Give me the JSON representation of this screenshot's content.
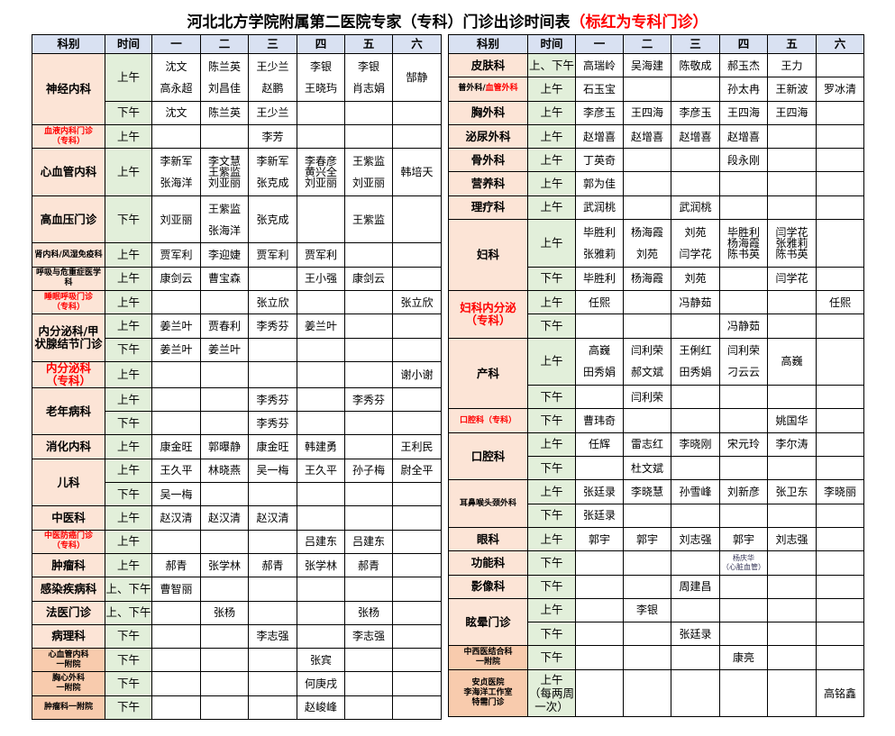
{
  "title": {
    "main": "河北北方学院附属第二医院专家（专科）门诊出诊时间表",
    "note": "（标红为专科门诊）"
  },
  "colors": {
    "header_bg": "#d9e1f2",
    "dept_bg": "#fce4d6",
    "annex_bg": "#f8cbad",
    "time_bg": "#e2efda",
    "specialty_text": "#ff0000"
  },
  "headers": [
    "科别",
    "时间",
    "一",
    "二",
    "三",
    "四",
    "五",
    "六"
  ],
  "left": {
    "rows": [
      {
        "dept": "神经内科",
        "span": 2,
        "time": "上午",
        "cells": [
          "沈文\n高永超",
          "陈兰英\n刘昌佳",
          "王少兰\n赵鹏",
          "李银\n王晓玙",
          "李银\n肖志娟",
          "郜静"
        ]
      },
      {
        "time": "下午",
        "cells": [
          "沈文",
          "陈兰英",
          "王少兰",
          "",
          "",
          ""
        ]
      },
      {
        "dept": "血液内科门诊\n（专科）",
        "red": true,
        "time": "上午",
        "cells": [
          "",
          "",
          "李芳",
          "",
          "",
          ""
        ]
      },
      {
        "dept": "心血管内科",
        "time": "上午",
        "cells": [
          "李新军\n张海洋",
          "李文慧\n王紫监\n刘亚丽",
          "李新军\n张克成",
          "李春彦\n黄兴全\n刘亚丽",
          "王紫监\n刘亚丽",
          "韩培天"
        ]
      },
      {
        "dept": "高血压门诊",
        "time": "下午",
        "cells": [
          "刘亚丽",
          "王紫监\n张海洋",
          "张克成",
          "",
          "王紫监",
          ""
        ]
      },
      {
        "dept": "肾内科/风湿免疫科",
        "time": "上午",
        "cells": [
          "贾军利",
          "李迎婕",
          "贾军利",
          "贾军利",
          "",
          ""
        ]
      },
      {
        "dept": "呼吸与危重症医学科",
        "time": "上午",
        "cells": [
          "康剑云",
          "曹宝森",
          "",
          "王小强",
          "康剑云",
          ""
        ]
      },
      {
        "dept": "睡眠呼吸门诊\n（专科）",
        "red": true,
        "time": "上午",
        "cells": [
          "",
          "",
          "张立欣",
          "",
          "",
          "张立欣"
        ]
      },
      {
        "dept": "内分泌科/甲\n状腺结节门诊",
        "span": 2,
        "time": "上午",
        "cells": [
          "姜兰叶",
          "贾春利",
          "李秀芬",
          "姜兰叶",
          "",
          ""
        ]
      },
      {
        "time": "下午",
        "cells": [
          "姜兰叶",
          "姜兰叶",
          "",
          "",
          "",
          ""
        ]
      },
      {
        "dept": "内分泌科\n（专科）",
        "red": true,
        "time": "上午",
        "cells": [
          "",
          "",
          "",
          "",
          "",
          "谢小谢"
        ]
      },
      {
        "dept": "老年病科",
        "span": 2,
        "time": "上午",
        "cells": [
          "",
          "",
          "李秀芬",
          "",
          "李秀芬",
          ""
        ]
      },
      {
        "time": "下午",
        "cells": [
          "",
          "",
          "李秀芬",
          "",
          "",
          ""
        ]
      },
      {
        "dept": "消化内科",
        "time": "上午",
        "cells": [
          "康金旺",
          "郭曝静",
          "康金旺",
          "韩建勇",
          "",
          "王利民"
        ]
      },
      {
        "dept": "儿科",
        "span": 2,
        "time": "上午",
        "cells": [
          "王久平",
          "林晓燕",
          "吴一梅",
          "王久平",
          "孙子梅",
          "尉全平"
        ]
      },
      {
        "time": "下午",
        "cells": [
          "吴一梅",
          "",
          "",
          "",
          "",
          ""
        ]
      },
      {
        "dept": "中医科",
        "time": "上午",
        "cells": [
          "赵汉清",
          "赵汉清",
          "赵汉清",
          "",
          "",
          ""
        ]
      },
      {
        "dept": "中医防癌门诊\n（专科）",
        "red": true,
        "time": "上午",
        "cells": [
          "",
          "",
          "",
          "吕建东",
          "吕建东",
          ""
        ]
      },
      {
        "dept": "肿瘤科",
        "time": "上午",
        "cells": [
          "郝青",
          "张学林",
          "郝青",
          "张学林",
          "郝青",
          ""
        ]
      },
      {
        "dept": "感染疾病科",
        "time": "上、下午",
        "cells": [
          "曹智丽",
          "",
          "",
          "",
          "",
          ""
        ]
      },
      {
        "dept": "法医门诊",
        "time": "上、下午",
        "cells": [
          "",
          "张杨",
          "",
          "",
          "张杨",
          ""
        ]
      },
      {
        "dept": "病理科",
        "time": "下午",
        "cells": [
          "",
          "",
          "李志强",
          "",
          "李志强",
          ""
        ]
      },
      {
        "dept": "心血管内科\n一附院",
        "annex": true,
        "time": "下午",
        "cells": [
          "",
          "",
          "",
          "张宾",
          "",
          ""
        ]
      },
      {
        "dept": "胸心外科\n一附院",
        "annex": true,
        "time": "下午",
        "cells": [
          "",
          "",
          "",
          "何庚戌",
          "",
          ""
        ]
      },
      {
        "dept": "肿瘤科一附院",
        "annex": true,
        "time": "下午",
        "cells": [
          "",
          "",
          "",
          "赵峻峰",
          "",
          ""
        ]
      }
    ]
  },
  "right": {
    "rows": [
      {
        "dept": "皮肤科",
        "time": "上、下午",
        "cells": [
          "高瑞岭",
          "吴海建",
          "陈敬成",
          "郝玉杰",
          "王力",
          ""
        ]
      },
      {
        "dept": "普外科/",
        "dept_red": "血管外科",
        "time": "上午",
        "cells": [
          "石玉宝",
          "",
          "",
          "孙太冉",
          "王新波",
          "罗冰清"
        ]
      },
      {
        "dept": "胸外科",
        "time": "上午",
        "cells": [
          "李彦玉",
          "王四海",
          "李彦玉",
          "王四海",
          "王四海",
          ""
        ]
      },
      {
        "dept": "泌尿外科",
        "time": "上午",
        "cells": [
          "赵增喜",
          "赵增喜",
          "赵增喜",
          "赵增喜",
          "",
          ""
        ]
      },
      {
        "dept": "骨外科",
        "time": "上午",
        "cells": [
          "丁英奇",
          "",
          "",
          "段永刚",
          "",
          ""
        ]
      },
      {
        "dept": "营养科",
        "time": "上午",
        "cells": [
          "郭为佳",
          "",
          "",
          "",
          "",
          ""
        ]
      },
      {
        "dept": "理疗科",
        "time": "上午",
        "cells": [
          "武润桃",
          "",
          "武润桃",
          "",
          "",
          ""
        ]
      },
      {
        "dept": "妇科",
        "span": 2,
        "time": "上午",
        "cells": [
          "毕胜利\n张雅莉",
          "杨海霞\n刘苑",
          "刘苑\n闫学花",
          "毕胜利\n杨海霞\n陈书英",
          "闫学花\n张雅莉\n陈书英",
          ""
        ]
      },
      {
        "time": "下午",
        "cells": [
          "毕胜利",
          "杨海霞",
          "刘苑",
          "",
          "闫学花",
          ""
        ]
      },
      {
        "dept": "妇科内分泌\n（专科）",
        "red": true,
        "span": 2,
        "time": "上午",
        "cells": [
          "任熙",
          "",
          "冯静茹",
          "",
          "",
          "任熙"
        ]
      },
      {
        "time": "下午",
        "cells": [
          "",
          "",
          "",
          "冯静茹",
          "",
          ""
        ]
      },
      {
        "dept": "产科",
        "span": 2,
        "time": "上午",
        "cells": [
          "高巍\n田秀娟",
          "闫利荣\n郝文斌",
          "王俐红\n田秀娟",
          "闫利荣\n刁云云",
          "高巍",
          ""
        ]
      },
      {
        "time": "下午",
        "cells": [
          "",
          "闫利荣",
          "",
          "",
          "",
          ""
        ]
      },
      {
        "dept": "口腔科（专科）",
        "red": true,
        "time": "下午",
        "cells": [
          "曹玮奇",
          "",
          "",
          "",
          "姚国华",
          ""
        ]
      },
      {
        "dept": "口腔科",
        "span": 2,
        "time": "上午",
        "cells": [
          "任辉",
          "雷志红",
          "李晓刚",
          "宋元玲",
          "李尔涛",
          ""
        ]
      },
      {
        "time": "下午",
        "cells": [
          "",
          "杜文斌",
          "",
          "",
          "",
          ""
        ]
      },
      {
        "dept": "耳鼻喉头颈外科",
        "span": 2,
        "time": "上午",
        "cells": [
          "张廷录",
          "李晓慧",
          "孙雪峰",
          "刘新彦",
          "张卫东",
          "李晓丽"
        ]
      },
      {
        "time": "下午",
        "cells": [
          "张廷录",
          "",
          "",
          "",
          "",
          ""
        ]
      },
      {
        "dept": "眼科",
        "time": "上午",
        "cells": [
          "郭宇",
          "郭宇",
          "刘志强",
          "郭宇",
          "刘志强",
          ""
        ]
      },
      {
        "dept": "功能科",
        "time": "下午",
        "cells": [
          "",
          "",
          "",
          "杨庆华\n（心脏血管）",
          "",
          ""
        ]
      },
      {
        "dept": "影像科",
        "time": "下午",
        "cells": [
          "",
          "",
          "周建昌",
          "",
          "",
          ""
        ]
      },
      {
        "dept": "眩晕门诊",
        "span": 2,
        "time": "上午",
        "cells": [
          "",
          "李银",
          "",
          "",
          "",
          ""
        ]
      },
      {
        "time": "下午",
        "cells": [
          "",
          "",
          "张廷录",
          "",
          "",
          ""
        ]
      },
      {
        "dept": "中西医结合科\n一附院",
        "annex": true,
        "time": "下午",
        "cells": [
          "",
          "",
          "",
          "康亮",
          "",
          ""
        ]
      },
      {
        "dept": "安贞医院\n李海洋工作室\n特需门诊",
        "annex": true,
        "time": "上午\n（每两周\n一次）",
        "cells": [
          "",
          "",
          "",
          "",
          "",
          "高铭鑫"
        ]
      }
    ]
  }
}
